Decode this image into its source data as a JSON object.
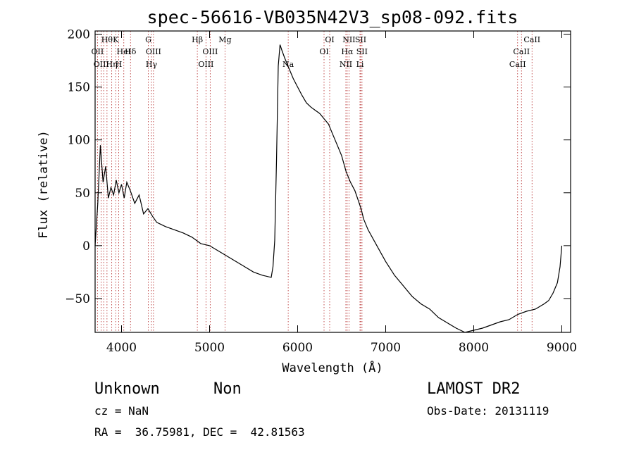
{
  "chart_data": {
    "type": "line",
    "title": "spec-56616-VB035N42V3_sp08-092.fits",
    "xlabel": "Wavelength (Å)",
    "ylabel": "Flux (relative)",
    "xlim": [
      3700,
      9100
    ],
    "ylim": [
      -82,
      203
    ],
    "xticks": [
      4000,
      5000,
      6000,
      7000,
      8000,
      9000
    ],
    "yticks": [
      -50,
      0,
      50,
      100,
      150,
      200
    ],
    "xtick_labels": [
      "4000",
      "5000",
      "6000",
      "7000",
      "8000",
      "9000"
    ],
    "ytick_labels": [
      "−50",
      "0",
      "50",
      "100",
      "150",
      "200"
    ],
    "grid": false,
    "line_color": "#000000",
    "marker_color": "#b22222",
    "series": [
      {
        "x": [
          3700,
          3730,
          3760,
          3790,
          3820,
          3850,
          3880,
          3910,
          3940,
          3970,
          4000,
          4030,
          4060,
          4100,
          4150,
          4200,
          4250,
          4300,
          4350,
          4400,
          4450,
          4500,
          4600,
          4700,
          4800,
          4900,
          5000,
          5100,
          5200,
          5300,
          5400,
          5500,
          5600,
          5700,
          5720,
          5740,
          5760,
          5780,
          5800,
          5820,
          5850,
          5900,
          5950,
          6000,
          6050,
          6100,
          6150,
          6200,
          6250,
          6300,
          6350,
          6400,
          6450,
          6500,
          6550,
          6600,
          6650,
          6700,
          6720,
          6750,
          6800,
          6900,
          7000,
          7100,
          7200,
          7300,
          7400,
          7500,
          7600,
          7700,
          7800,
          7900,
          8000,
          8100,
          8200,
          8300,
          8400,
          8500,
          8600,
          8700,
          8800,
          8850,
          8900,
          8950,
          8980,
          9000
        ],
        "y": [
          0,
          40,
          95,
          60,
          75,
          45,
          55,
          48,
          62,
          50,
          58,
          45,
          60,
          52,
          40,
          48,
          30,
          35,
          28,
          22,
          20,
          18,
          15,
          12,
          8,
          2,
          0,
          -5,
          -10,
          -15,
          -20,
          -25,
          -28,
          -30,
          -20,
          5,
          80,
          170,
          190,
          185,
          178,
          168,
          158,
          150,
          142,
          135,
          131,
          128,
          125,
          120,
          115,
          105,
          95,
          85,
          70,
          60,
          52,
          40,
          35,
          25,
          15,
          0,
          -15,
          -28,
          -38,
          -48,
          -55,
          -60,
          -68,
          -73,
          -78,
          -82,
          -80,
          -78,
          -75,
          -72,
          -70,
          -65,
          -62,
          -60,
          -55,
          -52,
          -45,
          -35,
          -20,
          0
        ]
      }
    ],
    "line_markers": [
      {
        "wl": 3727,
        "label": "OII",
        "row": 2
      },
      {
        "wl": 3770,
        "label": "OIII",
        "row": 3
      },
      {
        "wl": 3798,
        "label": "",
        "row": 0
      },
      {
        "wl": 3835,
        "label": "Hθ",
        "row": 1
      },
      {
        "wl": 3889,
        "label": "Hη",
        "row": 3
      },
      {
        "wl": 3934,
        "label": "K",
        "row": 1
      },
      {
        "wl": 3968,
        "label": "H",
        "row": 3
      },
      {
        "wl": 4026,
        "label": "HeI",
        "row": 2
      },
      {
        "wl": 4102,
        "label": "Hδ",
        "row": 2
      },
      {
        "wl": 4304,
        "label": "G",
        "row": 1
      },
      {
        "wl": 4340,
        "label": "Hγ",
        "row": 3
      },
      {
        "wl": 4363,
        "label": "OIII",
        "row": 2
      },
      {
        "wl": 4861,
        "label": "Hβ",
        "row": 1
      },
      {
        "wl": 4959,
        "label": "OIII",
        "row": 3
      },
      {
        "wl": 5007,
        "label": "OIII",
        "row": 2
      },
      {
        "wl": 5175,
        "label": "Mg",
        "row": 1
      },
      {
        "wl": 5893,
        "label": "Na",
        "row": 3
      },
      {
        "wl": 6300,
        "label": "OI",
        "row": 2
      },
      {
        "wl": 6364,
        "label": "OI",
        "row": 1
      },
      {
        "wl": 6548,
        "label": "NII",
        "row": 3
      },
      {
        "wl": 6563,
        "label": "Hα",
        "row": 2
      },
      {
        "wl": 6583,
        "label": "NII",
        "row": 1
      },
      {
        "wl": 6708,
        "label": "Li",
        "row": 3
      },
      {
        "wl": 6716,
        "label": "SII",
        "row": 1
      },
      {
        "wl": 6731,
        "label": "SII",
        "row": 2
      },
      {
        "wl": 8498,
        "label": "CaII",
        "row": 3
      },
      {
        "wl": 8542,
        "label": "CaII",
        "row": 2
      },
      {
        "wl": 8662,
        "label": "CaII",
        "row": 1
      }
    ]
  },
  "info": {
    "class": "Unknown",
    "subclass": "Non",
    "survey": "LAMOST DR2",
    "cz": "cz = NaN",
    "obs_date": "Obs-Date: 20131119",
    "radec": "RA =  36.75981, DEC =  42.81563"
  }
}
